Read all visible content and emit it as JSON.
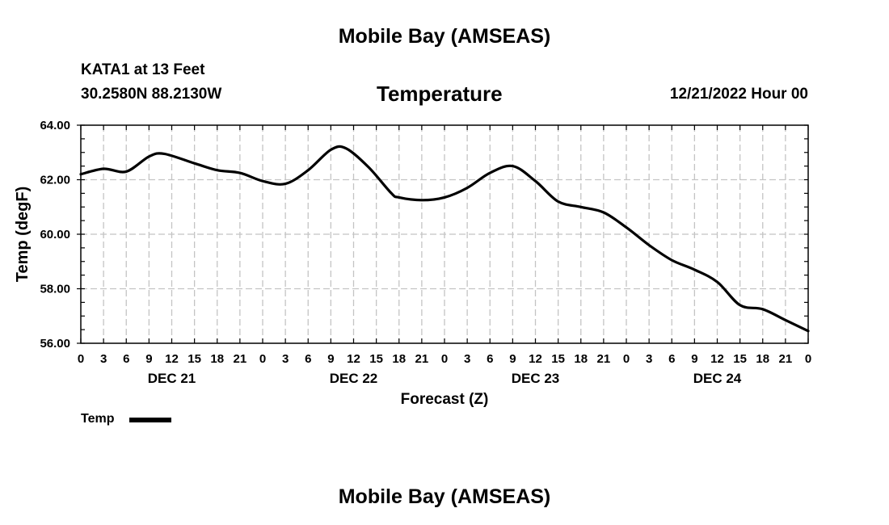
{
  "header": {
    "top_title": "Mobile Bay (AMSEAS)",
    "station": "KATA1 at 13 Feet",
    "coords": "30.2580N  88.2130W",
    "run_time": "12/21/2022 Hour 00",
    "bottom_title": "Mobile Bay (AMSEAS)"
  },
  "chart_data": {
    "type": "line",
    "title": "Temperature",
    "xlabel": "Forecast (Z)",
    "ylabel": "Temp (degF)",
    "xlim": [
      0,
      96
    ],
    "ylim": [
      56,
      64
    ],
    "yticks": [
      "56.00",
      "58.00",
      "60.00",
      "62.00",
      "64.00"
    ],
    "yvalues": [
      56,
      58,
      60,
      62,
      64
    ],
    "xtick_labels": [
      "0",
      "3",
      "6",
      "9",
      "12",
      "15",
      "18",
      "21",
      "0",
      "3",
      "6",
      "9",
      "12",
      "15",
      "18",
      "21",
      "0",
      "3",
      "6",
      "9",
      "12",
      "15",
      "18",
      "21",
      "0",
      "3",
      "6",
      "9",
      "12",
      "15",
      "18",
      "21",
      "0"
    ],
    "day_labels": [
      {
        "label": "DEC 21",
        "hour": 12
      },
      {
        "label": "DEC 22",
        "hour": 36
      },
      {
        "label": "DEC 23",
        "hour": 60
      },
      {
        "label": "DEC 24",
        "hour": 84
      }
    ],
    "grid": true,
    "series": [
      {
        "name": "Temp",
        "color": "#000000",
        "x": [
          0,
          3,
          6,
          9,
          11,
          15,
          18,
          21,
          24,
          27,
          30,
          33,
          35,
          38,
          41,
          42,
          45,
          48,
          51,
          54,
          57,
          60,
          63,
          66,
          69,
          72,
          75,
          78,
          81,
          84,
          87,
          90,
          93,
          96
        ],
        "y": [
          62.2,
          62.4,
          62.3,
          62.85,
          62.95,
          62.6,
          62.35,
          62.25,
          61.95,
          61.85,
          62.35,
          63.1,
          63.15,
          62.45,
          61.5,
          61.35,
          61.25,
          61.35,
          61.7,
          62.25,
          62.5,
          61.95,
          61.2,
          61.0,
          60.8,
          60.25,
          59.6,
          59.05,
          58.7,
          58.25,
          57.4,
          57.25,
          56.85,
          56.45
        ]
      }
    ]
  },
  "legend": {
    "label": "Temp"
  }
}
